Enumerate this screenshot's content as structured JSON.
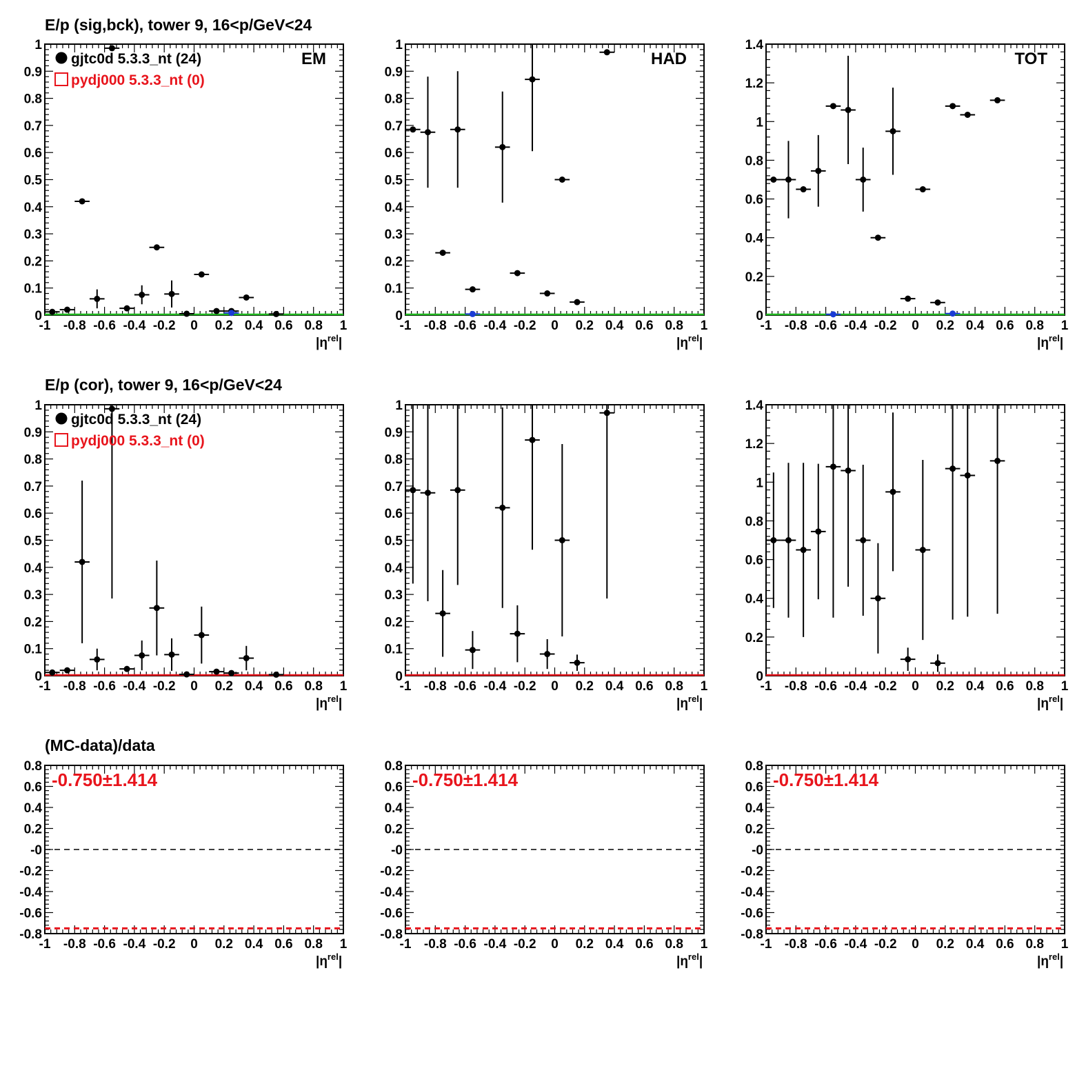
{
  "figure": {
    "row_titles": [
      "E/p (sig,bck), tower 9, 16<p/GeV<24",
      "E/p (cor), tower 9, 16<p/GeV<24",
      "(MC-data)/data"
    ],
    "x_axis_label": "|η^rel|",
    "x_ticks": [
      "-1",
      "-0.8",
      "-0.6",
      "-0.4",
      "-0.2",
      "0",
      "0.2",
      "0.4",
      "0.6",
      "0.8",
      "1"
    ],
    "legend": [
      {
        "label": "gjtc0d 5.3.3_nt (24)",
        "marker": "filled-circle",
        "color": "#000000"
      },
      {
        "label": "pydj000 5.3.3_nt (0)",
        "marker": "open-square",
        "color": "#e8141c"
      }
    ],
    "ratio_text": "-0.750±1.414",
    "colors": {
      "data": "#000000",
      "mc": "#e8141c",
      "baseline_green": "#22bb22",
      "point_blue": "#1a3bd6"
    }
  },
  "chart_data": [
    {
      "type": "scatter",
      "row": 0,
      "col": 0,
      "label": "EM",
      "xlim": [
        -1,
        1
      ],
      "ylim": [
        0,
        1
      ],
      "yticks": [
        "0",
        "0.1",
        "0.2",
        "0.3",
        "0.4",
        "0.5",
        "0.6",
        "0.7",
        "0.8",
        "0.9",
        "1"
      ],
      "show_legend": true,
      "baseline_color": "green",
      "series": [
        {
          "name": "gjtc0d 5.3.3_nt (24)",
          "points": [
            {
              "x": -0.95,
              "y": 0.012,
              "err": 0.005
            },
            {
              "x": -0.85,
              "y": 0.02,
              "err": 0.005
            },
            {
              "x": -0.75,
              "y": 0.42,
              "err": 0.004
            },
            {
              "x": -0.65,
              "y": 0.06,
              "err": 0.035
            },
            {
              "x": -0.55,
              "y": 0.985,
              "err": 0.004
            },
            {
              "x": -0.45,
              "y": 0.025,
              "err": 0.005
            },
            {
              "x": -0.35,
              "y": 0.075,
              "err": 0.035
            },
            {
              "x": -0.25,
              "y": 0.25,
              "err": 0.004
            },
            {
              "x": -0.15,
              "y": 0.078,
              "err": 0.05
            },
            {
              "x": -0.05,
              "y": 0.005,
              "err": 0.004
            },
            {
              "x": 0.05,
              "y": 0.15,
              "err": 0.004
            },
            {
              "x": 0.15,
              "y": 0.015,
              "err": 0.004
            },
            {
              "x": 0.25,
              "y": 0.015,
              "err": 0.006
            },
            {
              "x": 0.35,
              "y": 0.065,
              "err": 0.004
            },
            {
              "x": 0.55,
              "y": 0.004,
              "err": 0.003
            }
          ]
        },
        {
          "name": "blue",
          "points": [
            {
              "x": 0.25,
              "y": 0.008,
              "err": 0
            }
          ]
        }
      ]
    },
    {
      "type": "scatter",
      "row": 0,
      "col": 1,
      "label": "HAD",
      "xlim": [
        -1,
        1
      ],
      "ylim": [
        0,
        1
      ],
      "yticks": [
        "0",
        "0.1",
        "0.2",
        "0.3",
        "0.4",
        "0.5",
        "0.6",
        "0.7",
        "0.8",
        "0.9",
        "1"
      ],
      "show_legend": false,
      "baseline_color": "green",
      "series": [
        {
          "name": "gjtc0d 5.3.3_nt (24)",
          "points": [
            {
              "x": -0.95,
              "y": 0.685,
              "err": 0.01
            },
            {
              "x": -0.85,
              "y": 0.675,
              "err": 0.205
            },
            {
              "x": -0.75,
              "y": 0.23,
              "err": 0.004
            },
            {
              "x": -0.65,
              "y": 0.685,
              "err": 0.215
            },
            {
              "x": -0.55,
              "y": 0.095,
              "err": 0.004
            },
            {
              "x": -0.35,
              "y": 0.62,
              "err": 0.205
            },
            {
              "x": -0.25,
              "y": 0.155,
              "err": 0.004
            },
            {
              "x": -0.15,
              "y": 0.87,
              "err": 0.265
            },
            {
              "x": -0.05,
              "y": 0.08,
              "err": 0.004
            },
            {
              "x": 0.05,
              "y": 0.5,
              "err": 0.004
            },
            {
              "x": 0.15,
              "y": 0.048,
              "err": 0.004
            },
            {
              "x": 0.35,
              "y": 0.97,
              "err": 0.004
            }
          ]
        },
        {
          "name": "blue",
          "points": [
            {
              "x": -0.55,
              "y": 0.004,
              "err": 0
            }
          ]
        }
      ]
    },
    {
      "type": "scatter",
      "row": 0,
      "col": 2,
      "label": "TOT",
      "xlim": [
        -1,
        1
      ],
      "ylim": [
        0,
        1.4
      ],
      "yticks": [
        "0",
        "0.2",
        "0.4",
        "0.6",
        "0.8",
        "1",
        "1.2",
        "1.4"
      ],
      "show_legend": false,
      "baseline_color": "green",
      "series": [
        {
          "name": "gjtc0d 5.3.3_nt (24)",
          "points": [
            {
              "x": -0.95,
              "y": 0.7,
              "err": 0.005
            },
            {
              "x": -0.85,
              "y": 0.7,
              "err": 0.2
            },
            {
              "x": -0.75,
              "y": 0.65,
              "err": 0.005
            },
            {
              "x": -0.65,
              "y": 0.745,
              "err": 0.185
            },
            {
              "x": -0.55,
              "y": 1.08,
              "err": 0.005
            },
            {
              "x": -0.45,
              "y": 1.06,
              "err": 0.28
            },
            {
              "x": -0.35,
              "y": 0.7,
              "err": 0.165
            },
            {
              "x": -0.25,
              "y": 0.4,
              "err": 0.005
            },
            {
              "x": -0.15,
              "y": 0.95,
              "err": 0.225
            },
            {
              "x": -0.05,
              "y": 0.085,
              "err": 0.005
            },
            {
              "x": 0.05,
              "y": 0.65,
              "err": 0.005
            },
            {
              "x": 0.15,
              "y": 0.065,
              "err": 0.005
            },
            {
              "x": 0.25,
              "y": 1.08,
              "err": 0.005
            },
            {
              "x": 0.35,
              "y": 1.035,
              "err": 0.005
            },
            {
              "x": 0.55,
              "y": 1.11,
              "err": 0.005
            }
          ]
        },
        {
          "name": "blue",
          "points": [
            {
              "x": -0.55,
              "y": 0.004,
              "err": 0
            },
            {
              "x": 0.25,
              "y": 0.008,
              "err": 0
            }
          ]
        }
      ]
    },
    {
      "type": "scatter",
      "row": 1,
      "col": 0,
      "label": "",
      "xlim": [
        -1,
        1
      ],
      "ylim": [
        0,
        1
      ],
      "yticks": [
        "0",
        "0.1",
        "0.2",
        "0.3",
        "0.4",
        "0.5",
        "0.6",
        "0.7",
        "0.8",
        "0.9",
        "1"
      ],
      "show_legend": true,
      "baseline_color": "red",
      "series": [
        {
          "name": "gjtc0d 5.3.3_nt (24)",
          "points": [
            {
              "x": -0.95,
              "y": 0.012,
              "err": 0.005
            },
            {
              "x": -0.85,
              "y": 0.02,
              "err": 0.006
            },
            {
              "x": -0.75,
              "y": 0.42,
              "err": 0.3
            },
            {
              "x": -0.65,
              "y": 0.06,
              "err": 0.04
            },
            {
              "x": -0.55,
              "y": 0.985,
              "err": 0.7
            },
            {
              "x": -0.45,
              "y": 0.025,
              "err": 0.008
            },
            {
              "x": -0.35,
              "y": 0.075,
              "err": 0.055
            },
            {
              "x": -0.25,
              "y": 0.25,
              "err": 0.175
            },
            {
              "x": -0.15,
              "y": 0.078,
              "err": 0.06
            },
            {
              "x": -0.05,
              "y": 0.005,
              "err": 0.004
            },
            {
              "x": 0.05,
              "y": 0.15,
              "err": 0.105
            },
            {
              "x": 0.15,
              "y": 0.015,
              "err": 0.008
            },
            {
              "x": 0.25,
              "y": 0.01,
              "err": 0.008
            },
            {
              "x": 0.35,
              "y": 0.065,
              "err": 0.045
            },
            {
              "x": 0.55,
              "y": 0.004,
              "err": 0.003
            }
          ]
        }
      ]
    },
    {
      "type": "scatter",
      "row": 1,
      "col": 1,
      "label": "",
      "xlim": [
        -1,
        1
      ],
      "ylim": [
        0,
        1
      ],
      "yticks": [
        "0",
        "0.1",
        "0.2",
        "0.3",
        "0.4",
        "0.5",
        "0.6",
        "0.7",
        "0.8",
        "0.9",
        "1"
      ],
      "show_legend": false,
      "baseline_color": "red",
      "series": [
        {
          "name": "gjtc0d 5.3.3_nt (24)",
          "points": [
            {
              "x": -0.95,
              "y": 0.685,
              "err": 0.345
            },
            {
              "x": -0.85,
              "y": 0.675,
              "err": 0.4
            },
            {
              "x": -0.75,
              "y": 0.23,
              "err": 0.16
            },
            {
              "x": -0.65,
              "y": 0.685,
              "err": 0.35
            },
            {
              "x": -0.55,
              "y": 0.095,
              "err": 0.07
            },
            {
              "x": -0.35,
              "y": 0.62,
              "err": 0.37
            },
            {
              "x": -0.25,
              "y": 0.155,
              "err": 0.105
            },
            {
              "x": -0.15,
              "y": 0.87,
              "err": 0.405
            },
            {
              "x": -0.05,
              "y": 0.08,
              "err": 0.055
            },
            {
              "x": 0.05,
              "y": 0.5,
              "err": 0.355
            },
            {
              "x": 0.15,
              "y": 0.048,
              "err": 0.03
            },
            {
              "x": 0.35,
              "y": 0.97,
              "err": 0.685
            }
          ]
        }
      ]
    },
    {
      "type": "scatter",
      "row": 1,
      "col": 2,
      "label": "",
      "xlim": [
        -1,
        1
      ],
      "ylim": [
        0,
        1.4
      ],
      "yticks": [
        "0",
        "0.2",
        "0.4",
        "0.6",
        "0.8",
        "1",
        "1.2",
        "1.4"
      ],
      "show_legend": false,
      "baseline_color": "red",
      "series": [
        {
          "name": "gjtc0d 5.3.3_nt (24)",
          "points": [
            {
              "x": -0.95,
              "y": 0.7,
              "err": 0.35
            },
            {
              "x": -0.85,
              "y": 0.7,
              "err": 0.4
            },
            {
              "x": -0.75,
              "y": 0.65,
              "err": 0.45
            },
            {
              "x": -0.65,
              "y": 0.745,
              "err": 0.35
            },
            {
              "x": -0.55,
              "y": 1.08,
              "err": 0.78
            },
            {
              "x": -0.45,
              "y": 1.06,
              "err": 0.6
            },
            {
              "x": -0.35,
              "y": 0.7,
              "err": 0.39
            },
            {
              "x": -0.25,
              "y": 0.4,
              "err": 0.285
            },
            {
              "x": -0.15,
              "y": 0.95,
              "err": 0.41
            },
            {
              "x": -0.05,
              "y": 0.085,
              "err": 0.06
            },
            {
              "x": 0.05,
              "y": 0.65,
              "err": 0.465
            },
            {
              "x": 0.15,
              "y": 0.065,
              "err": 0.045
            },
            {
              "x": 0.25,
              "y": 1.07,
              "err": 0.78
            },
            {
              "x": 0.35,
              "y": 1.035,
              "err": 0.73
            },
            {
              "x": 0.55,
              "y": 1.11,
              "err": 0.79
            }
          ]
        }
      ]
    },
    {
      "type": "line",
      "row": 2,
      "col": 0,
      "label": "",
      "xlim": [
        -1,
        1
      ],
      "ylim": [
        -0.8,
        0.8
      ],
      "yticks": [
        "-0.8",
        "-0.6",
        "-0.4",
        "-0.2",
        "-0",
        "0.2",
        "0.4",
        "0.6",
        "0.8"
      ],
      "ratio_text": "-0.750±1.414",
      "zero_line": 0,
      "ratio_line": -0.75
    },
    {
      "type": "line",
      "row": 2,
      "col": 1,
      "label": "",
      "xlim": [
        -1,
        1
      ],
      "ylim": [
        -0.8,
        0.8
      ],
      "yticks": [
        "-0.8",
        "-0.6",
        "-0.4",
        "-0.2",
        "-0",
        "0.2",
        "0.4",
        "0.6",
        "0.8"
      ],
      "ratio_text": "-0.750±1.414",
      "zero_line": 0,
      "ratio_line": -0.75
    },
    {
      "type": "line",
      "row": 2,
      "col": 2,
      "label": "",
      "xlim": [
        -1,
        1
      ],
      "ylim": [
        -0.8,
        0.8
      ],
      "yticks": [
        "-0.8",
        "-0.6",
        "-0.4",
        "-0.2",
        "-0",
        "0.2",
        "0.4",
        "0.6",
        "0.8"
      ],
      "ratio_text": "-0.750±1.414",
      "zero_line": 0,
      "ratio_line": -0.75
    }
  ]
}
